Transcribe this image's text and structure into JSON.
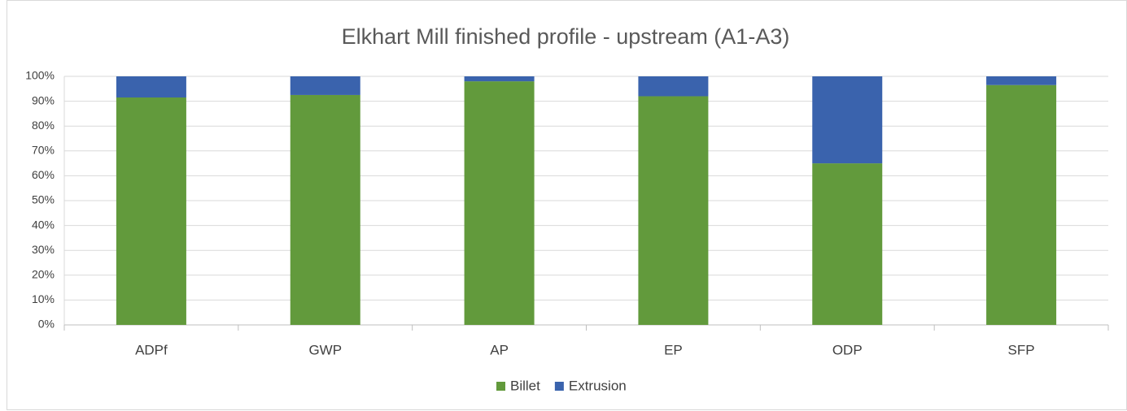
{
  "chart_data": {
    "type": "stacked_bar",
    "title": "Elkhart Mill finished profile - upstream (A1-A3)",
    "categories": [
      "ADPf",
      "GWP",
      "AP",
      "EP",
      "ODP",
      "SFP"
    ],
    "series": [
      {
        "name": "Billet",
        "color": "#629a3c",
        "values": [
          91.5,
          92.5,
          98,
          92,
          65,
          96.5
        ]
      },
      {
        "name": "Extrusion",
        "color": "#3a63ad",
        "values": [
          8.5,
          7.5,
          2,
          8,
          35,
          3.5
        ]
      }
    ],
    "ylim": [
      0,
      100
    ],
    "yticks": [
      {
        "value": 0,
        "label": "0%"
      },
      {
        "value": 10,
        "label": "10%"
      },
      {
        "value": 20,
        "label": "20%"
      },
      {
        "value": 30,
        "label": "30%"
      },
      {
        "value": 40,
        "label": "40%"
      },
      {
        "value": 50,
        "label": "50%"
      },
      {
        "value": 60,
        "label": "60%"
      },
      {
        "value": 70,
        "label": "70%"
      },
      {
        "value": 80,
        "label": "80%"
      },
      {
        "value": 90,
        "label": "90%"
      },
      {
        "value": 100,
        "label": "100%"
      }
    ],
    "grid": true,
    "legend": "bottom"
  }
}
